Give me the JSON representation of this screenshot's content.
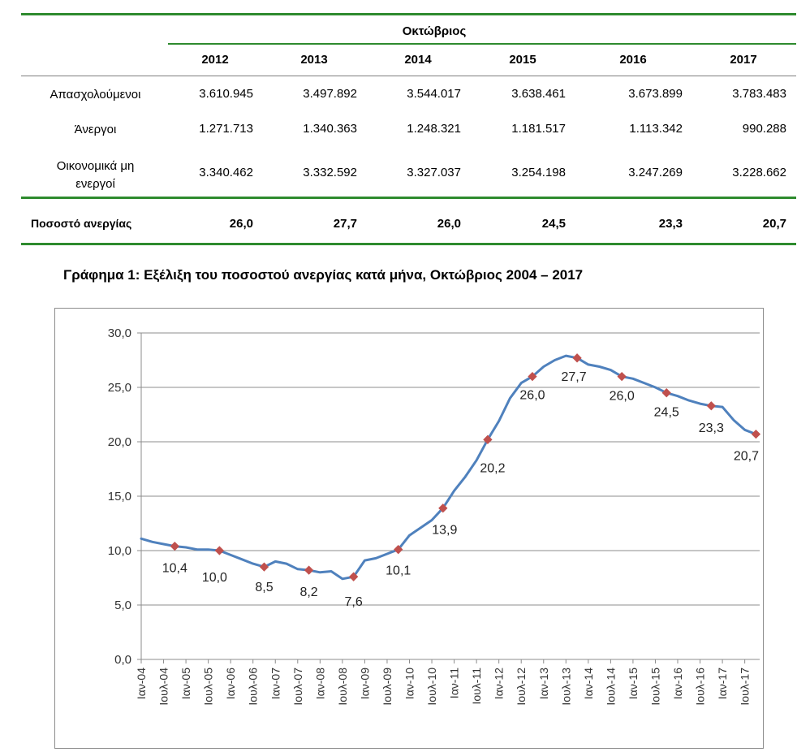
{
  "table": {
    "group_header": "Οκτώβριος",
    "years": [
      "2012",
      "2013",
      "2014",
      "2015",
      "2016",
      "2017"
    ],
    "rows": [
      {
        "label": "Απασχολούμενοι",
        "values": [
          "3.610.945",
          "3.497.892",
          "3.544.017",
          "3.638.461",
          "3.673.899",
          "3.783.483"
        ]
      },
      {
        "label": "Άνεργοι",
        "values": [
          "1.271.713",
          "1.340.363",
          "1.248.321",
          "1.181.517",
          "1.113.342",
          "990.288"
        ]
      },
      {
        "label_line1": "Οικονομικά μη",
        "label_line2": "ενεργοί",
        "values": [
          "3.340.462",
          "3.332.592",
          "3.327.037",
          "3.254.198",
          "3.247.269",
          "3.228.662"
        ]
      }
    ],
    "rate_row": {
      "label": "Ποσοστό ανεργίας",
      "values": [
        "26,0",
        "27,7",
        "26,0",
        "24,5",
        "23,3",
        "20,7"
      ]
    }
  },
  "chart_title": "Γράφημα 1: Εξέλιξη του ποσοστού ανεργίας κατά μήνα, Οκτώβριος 2004 – 2017",
  "chart_data": {
    "type": "line",
    "line_color": "#4f81bd",
    "marker_color": "#c0504d",
    "grid": true,
    "ylim": [
      0,
      30
    ],
    "yticks": [
      "0,0",
      "5,0",
      "10,0",
      "15,0",
      "20,0",
      "25,0",
      "30,0"
    ],
    "xtick_labels": [
      "Ιαν-04",
      "Ιουλ-04",
      "Ιαν-05",
      "Ιουλ-05",
      "Ιαν-06",
      "Ιουλ-06",
      "Ιαν-07",
      "Ιουλ-07",
      "Ιαν-08",
      "Ιουλ-08",
      "Ιαν-09",
      "Ιουλ-09",
      "Ιαν-10",
      "Ιουλ-10",
      "Ιαν-11",
      "Ιουλ-11",
      "Ιαν-12",
      "Ιουλ-12",
      "Ιαν-13",
      "Ιουλ-13",
      "Ιαν-14",
      "Ιουλ-14",
      "Ιαν-15",
      "Ιουλ-15",
      "Ιαν-16",
      "Ιουλ-16",
      "Ιαν-17",
      "Ιουλ-17"
    ],
    "series": [
      {
        "x": [
          "2004-01",
          "2004-04",
          "2004-07",
          "2004-10",
          "2005-01",
          "2005-04",
          "2005-07",
          "2005-10",
          "2006-01",
          "2006-04",
          "2006-07",
          "2006-10",
          "2007-01",
          "2007-04",
          "2007-07",
          "2007-10",
          "2008-01",
          "2008-04",
          "2008-07",
          "2008-10",
          "2009-01",
          "2009-04",
          "2009-07",
          "2009-10",
          "2010-01",
          "2010-04",
          "2010-07",
          "2010-10",
          "2011-01",
          "2011-04",
          "2011-07",
          "2011-10",
          "2012-01",
          "2012-04",
          "2012-07",
          "2012-10",
          "2013-01",
          "2013-04",
          "2013-07",
          "2013-10",
          "2014-01",
          "2014-04",
          "2014-07",
          "2014-10",
          "2015-01",
          "2015-04",
          "2015-07",
          "2015-10",
          "2016-01",
          "2016-04",
          "2016-07",
          "2016-10",
          "2017-01",
          "2017-04",
          "2017-07",
          "2017-10"
        ],
        "values": [
          11.1,
          10.8,
          10.6,
          10.4,
          10.3,
          10.1,
          10.1,
          10.0,
          9.6,
          9.2,
          8.8,
          8.5,
          9.0,
          8.8,
          8.3,
          8.2,
          8.0,
          8.1,
          7.4,
          7.6,
          9.1,
          9.3,
          9.7,
          10.1,
          11.4,
          12.1,
          12.8,
          13.9,
          15.5,
          16.8,
          18.3,
          20.2,
          21.9,
          24.0,
          25.4,
          26.0,
          26.9,
          27.5,
          27.9,
          27.7,
          27.1,
          26.9,
          26.6,
          26.0,
          25.8,
          25.4,
          25.0,
          24.5,
          24.2,
          23.8,
          23.5,
          23.3,
          23.2,
          22.0,
          21.1,
          20.7
        ]
      }
    ],
    "annotated_points": [
      {
        "x": "2004-10",
        "label": "10,4"
      },
      {
        "x": "2005-10",
        "label": "10,0"
      },
      {
        "x": "2006-10",
        "label": "8,5"
      },
      {
        "x": "2007-10",
        "label": "8,2"
      },
      {
        "x": "2008-10",
        "label": "7,6"
      },
      {
        "x": "2009-10",
        "label": "10,1"
      },
      {
        "x": "2010-10",
        "label": "13,9"
      },
      {
        "x": "2011-10",
        "label": "20,2"
      },
      {
        "x": "2012-10",
        "label": "26,0"
      },
      {
        "x": "2013-10",
        "label": "27,7"
      },
      {
        "x": "2014-10",
        "label": "26,0"
      },
      {
        "x": "2015-10",
        "label": "24,5"
      },
      {
        "x": "2016-10",
        "label": "23,3"
      },
      {
        "x": "2017-10",
        "label": "20,7"
      }
    ]
  }
}
